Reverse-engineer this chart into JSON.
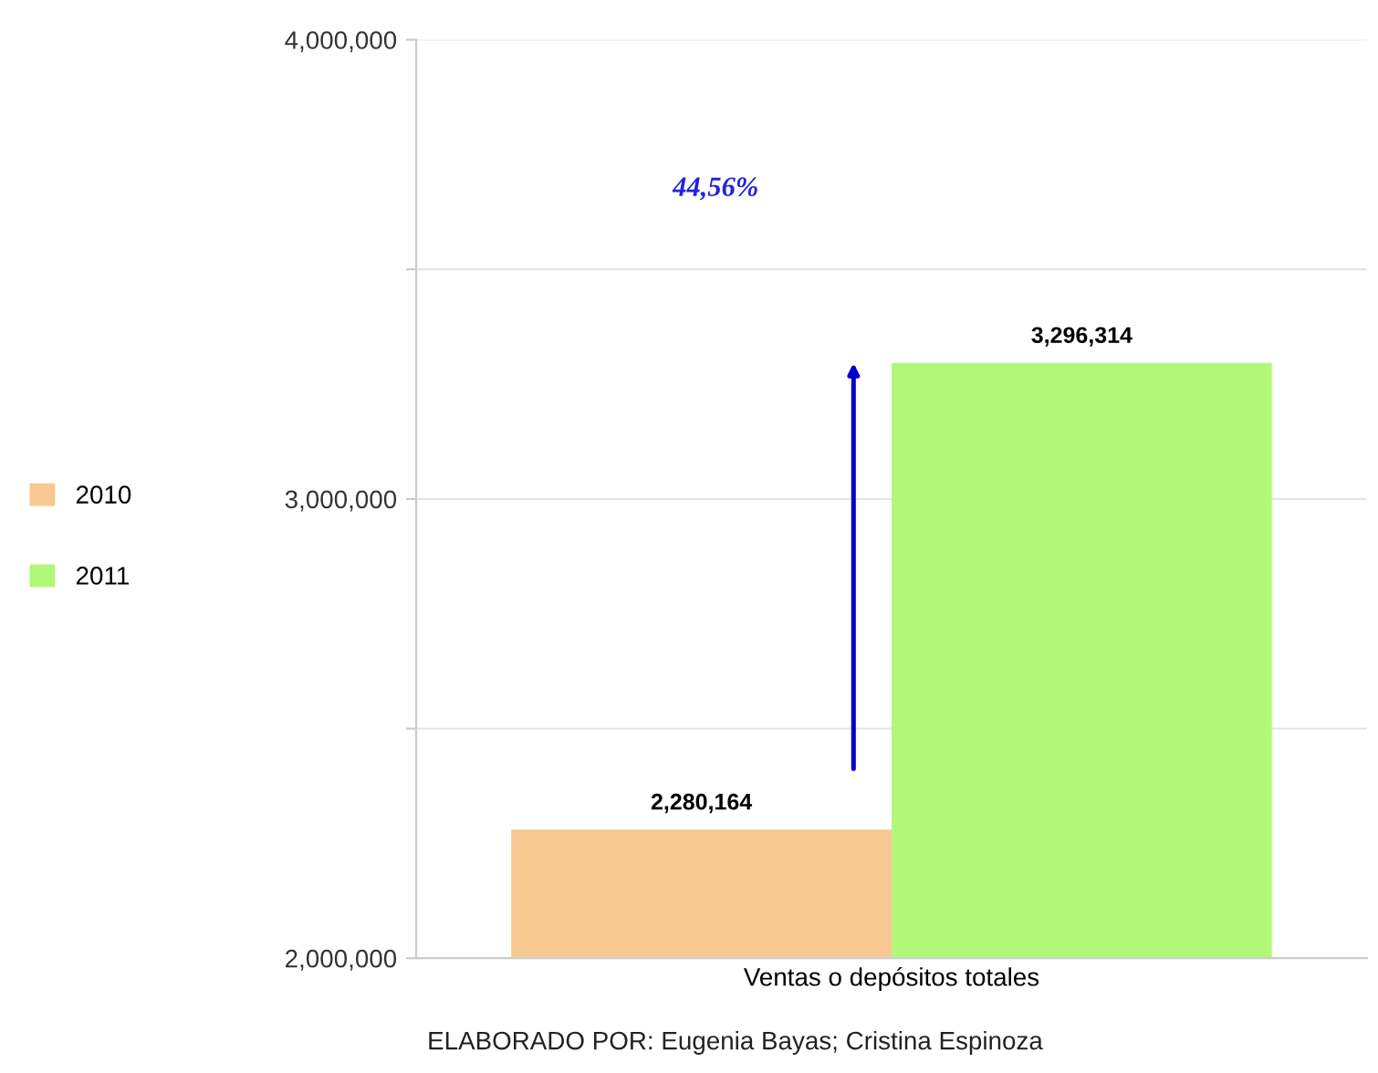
{
  "chart_data": {
    "type": "bar",
    "categories": [
      "Ventas o depósitos totales"
    ],
    "series": [
      {
        "name": "2010",
        "color": "#f8c892",
        "values": [
          2280164
        ],
        "value_labels": [
          "2,280,164"
        ]
      },
      {
        "name": "2011",
        "color": "#b2f878",
        "values": [
          3296314
        ],
        "value_labels": [
          "3,296,314"
        ]
      }
    ],
    "ylim": [
      2000000,
      4000000
    ],
    "yticks": [
      {
        "value": 2000000,
        "label": "2,000,000"
      },
      {
        "value": 2500000,
        "label": null
      },
      {
        "value": 3000000,
        "label": "3,000,000"
      },
      {
        "value": 3500000,
        "label": null
      },
      {
        "value": 4000000,
        "label": "4,000,000"
      }
    ],
    "grid": "y",
    "legend": "left",
    "annotations": [
      "44,56%",
      "ELABORADO POR: Eugenia Bayas; Cristina Espinoza"
    ]
  }
}
